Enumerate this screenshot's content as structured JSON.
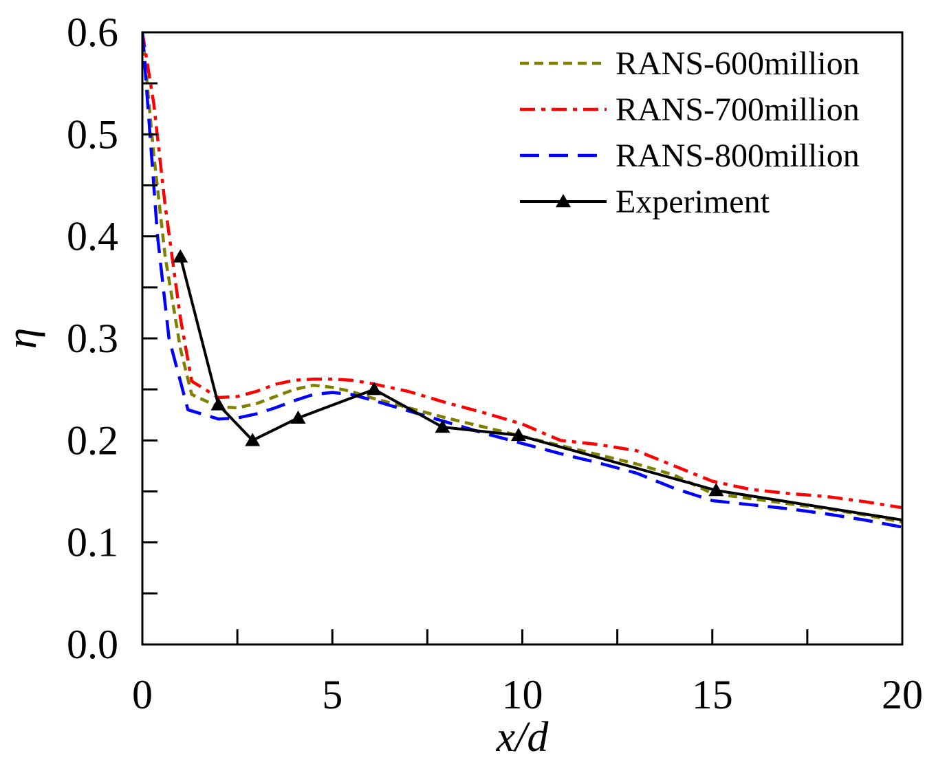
{
  "chart_data": {
    "type": "line",
    "title": "",
    "xlabel": "x/d",
    "ylabel": "η",
    "xlim": [
      0,
      20
    ],
    "ylim": [
      0,
      0.6
    ],
    "x_ticks": [
      0,
      5,
      10,
      15,
      20
    ],
    "x_tick_labels": [
      "0",
      "5",
      "10",
      "15",
      "20"
    ],
    "x_minor_ticks": [
      2.5,
      7.5,
      12.5,
      17.5
    ],
    "y_ticks": [
      0,
      0.1,
      0.2,
      0.3,
      0.4,
      0.5,
      0.6
    ],
    "y_tick_labels": [
      "0.0",
      "0.1",
      "0.2",
      "0.3",
      "0.4",
      "0.5",
      "0.6"
    ],
    "y_minor_ticks": [
      0.05,
      0.15,
      0.25,
      0.35,
      0.45,
      0.55
    ],
    "grid": false,
    "legend_position": "top-right",
    "series": [
      {
        "name": "RANS-600million",
        "color": "#808000",
        "dash": "short-dash",
        "marker": "none",
        "x": [
          0,
          0.3,
          0.6,
          1.0,
          1.3,
          2.0,
          2.5,
          3.0,
          3.5,
          4.0,
          4.5,
          5.0,
          5.5,
          6.0,
          7.0,
          8.0,
          9.0,
          10.0,
          11.0,
          12.0,
          13.0,
          14.0,
          15.0,
          16.0,
          17.0,
          18.0,
          19.0,
          20.0
        ],
        "y": [
          0.6,
          0.48,
          0.38,
          0.29,
          0.245,
          0.233,
          0.232,
          0.236,
          0.243,
          0.25,
          0.254,
          0.252,
          0.248,
          0.242,
          0.232,
          0.222,
          0.213,
          0.204,
          0.195,
          0.186,
          0.177,
          0.166,
          0.148,
          0.143,
          0.138,
          0.133,
          0.127,
          0.12
        ]
      },
      {
        "name": "RANS-700million",
        "color": "#ff0000",
        "dash": "dash-dot",
        "marker": "none",
        "x": [
          0,
          0.3,
          0.6,
          1.0,
          1.3,
          2.0,
          2.5,
          3.0,
          3.5,
          4.0,
          4.5,
          5.0,
          5.5,
          6.0,
          7.0,
          8.0,
          9.0,
          10.0,
          11.0,
          12.0,
          13.0,
          14.0,
          15.0,
          16.0,
          17.0,
          18.0,
          19.0,
          20.0
        ],
        "y": [
          0.6,
          0.53,
          0.43,
          0.32,
          0.258,
          0.242,
          0.243,
          0.248,
          0.255,
          0.259,
          0.26,
          0.26,
          0.259,
          0.256,
          0.248,
          0.237,
          0.227,
          0.216,
          0.2,
          0.196,
          0.19,
          0.175,
          0.16,
          0.152,
          0.148,
          0.145,
          0.14,
          0.134
        ]
      },
      {
        "name": "RANS-800million",
        "color": "#0000ff",
        "dash": "long-dash",
        "marker": "none",
        "x": [
          0,
          0.2,
          0.4,
          0.7,
          1.2,
          2.0,
          2.5,
          3.0,
          3.5,
          4.0,
          4.5,
          5.0,
          5.5,
          6.0,
          7.0,
          8.0,
          9.0,
          10.0,
          11.0,
          12.0,
          13.0,
          14.0,
          15.0,
          16.0,
          17.0,
          18.0,
          19.0,
          20.0
        ],
        "y": [
          0.6,
          0.5,
          0.4,
          0.3,
          0.23,
          0.221,
          0.222,
          0.226,
          0.232,
          0.239,
          0.245,
          0.247,
          0.245,
          0.24,
          0.229,
          0.218,
          0.207,
          0.197,
          0.187,
          0.178,
          0.168,
          0.153,
          0.141,
          0.137,
          0.133,
          0.128,
          0.122,
          0.115
        ]
      },
      {
        "name": "Experiment",
        "color": "#000000",
        "dash": "solid",
        "marker": "triangle",
        "x": [
          1.0,
          2.0,
          2.9,
          4.1,
          6.1,
          7.9,
          9.9,
          15.1,
          20.0
        ],
        "y": [
          0.38,
          0.235,
          0.2,
          0.222,
          0.25,
          0.213,
          0.205,
          0.151,
          0.122
        ],
        "marker_points": 8
      }
    ]
  }
}
